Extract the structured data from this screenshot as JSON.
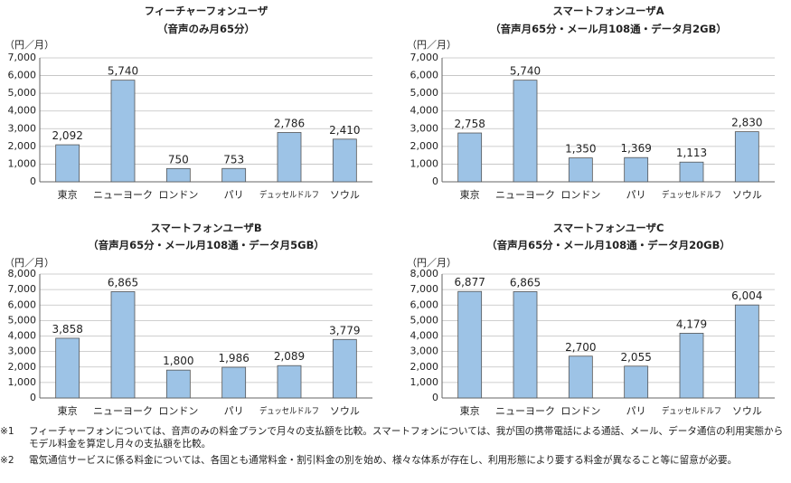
{
  "chart_data": [
    {
      "type": "bar",
      "title": "フィーチャーフォンユーザ",
      "subtitle": "（音声のみ月65分）",
      "ylabel": "（円／月）",
      "ylim": [
        0,
        7000
      ],
      "yticks": [
        "0",
        "1,000",
        "2,000",
        "3,000",
        "4,000",
        "5,000",
        "6,000",
        "7,000"
      ],
      "categories": [
        "東京",
        "ニューヨーク",
        "ロンドン",
        "パリ",
        "デュッセルドルフ",
        "ソウル"
      ],
      "values": [
        2092,
        5740,
        750,
        753,
        2786,
        2410
      ],
      "labels": [
        "2,092",
        "5,740",
        "750",
        "753",
        "2,786",
        "2,410"
      ],
      "bar_color": "#9dc3e6"
    },
    {
      "type": "bar",
      "title": "スマートフォンユーザA",
      "subtitle": "（音声月65分・メール月108通・データ月2GB）",
      "ylabel": "（円／月）",
      "ylim": [
        0,
        7000
      ],
      "yticks": [
        "0",
        "1,000",
        "2,000",
        "3,000",
        "4,000",
        "5,000",
        "6,000",
        "7,000"
      ],
      "categories": [
        "東京",
        "ニューヨーク",
        "ロンドン",
        "パリ",
        "デュッセルドルフ",
        "ソウル"
      ],
      "values": [
        2758,
        5740,
        1350,
        1369,
        1113,
        2830
      ],
      "labels": [
        "2,758",
        "5,740",
        "1,350",
        "1,369",
        "1,113",
        "2,830"
      ],
      "bar_color": "#9dc3e6"
    },
    {
      "type": "bar",
      "title": "スマートフォンユーザB",
      "subtitle": "（音声月65分・メール月108通・データ月5GB）",
      "ylabel": "（円／月）",
      "ylim": [
        0,
        8000
      ],
      "yticks": [
        "0",
        "1,000",
        "2,000",
        "3,000",
        "4,000",
        "5,000",
        "6,000",
        "7,000",
        "8,000"
      ],
      "categories": [
        "東京",
        "ニューヨーク",
        "ロンドン",
        "パリ",
        "デュッセルドルフ",
        "ソウル"
      ],
      "values": [
        3858,
        6865,
        1800,
        1986,
        2089,
        3779
      ],
      "labels": [
        "3,858",
        "6,865",
        "1,800",
        "1,986",
        "2,089",
        "3,779"
      ],
      "bar_color": "#9dc3e6"
    },
    {
      "type": "bar",
      "title": "スマートフォンユーザC",
      "subtitle": "（音声月65分・メール月108通・データ月20GB）",
      "ylabel": "（円／月）",
      "ylim": [
        0,
        8000
      ],
      "yticks": [
        "0",
        "1,000",
        "2,000",
        "3,000",
        "4,000",
        "5,000",
        "6,000",
        "7,000",
        "8,000"
      ],
      "categories": [
        "東京",
        "ニューヨーク",
        "ロンドン",
        "パリ",
        "デュッセルドルフ",
        "ソウル"
      ],
      "values": [
        6877,
        6865,
        2700,
        2055,
        4179,
        6004
      ],
      "labels": [
        "6,877",
        "6,865",
        "2,700",
        "2,055",
        "4,179",
        "6,004"
      ],
      "bar_color": "#9dc3e6"
    }
  ],
  "notes": [
    {
      "mark": "※1",
      "text": "フィーチャーフォンについては、音声のみの料金プランで月々の支払額を比較。スマートフォンについては、我が国の携帯電話による通話、メール、データ通信の利用実態からモデル料金を算定し月々の支払額を比較。"
    },
    {
      "mark": "※2",
      "text": "電気通信サービスに係る料金については、各国とも通常料金・割引料金の別を始め、様々な体系が存在し、利用形態により要する料金が異なること等に留意が必要。"
    }
  ]
}
